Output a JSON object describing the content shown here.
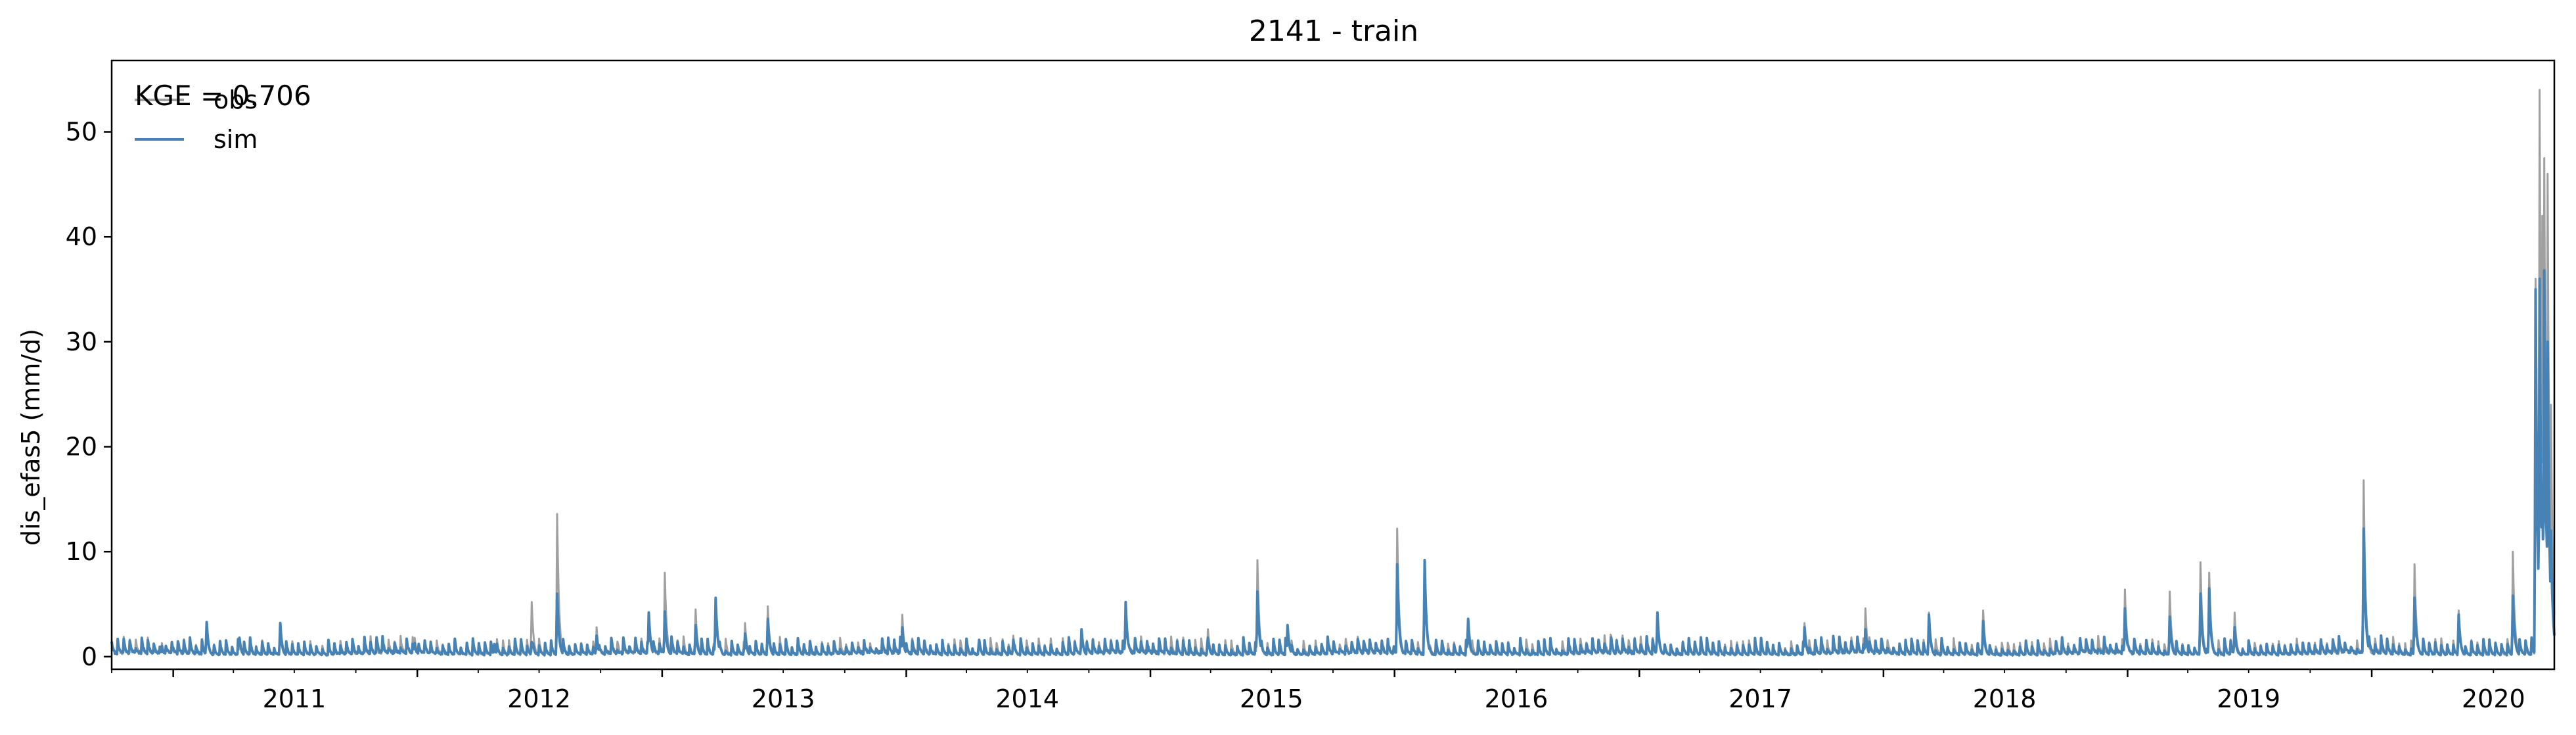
{
  "chart_data": {
    "type": "line",
    "title": "2141 - train",
    "xlabel": "",
    "ylabel": "dis_efas5 (mm/d)",
    "xlim": [
      "2010-10-01",
      "2020-09-30"
    ],
    "ylim": [
      -1.2,
      56.8
    ],
    "grid": false,
    "legend": {
      "placement": "top-left",
      "entries": [
        "obs",
        "sim"
      ]
    },
    "annotation": "KGE = 0.706",
    "y_ticks": [
      0,
      10,
      20,
      30,
      40,
      50
    ],
    "x_ticks": [
      "2011",
      "2012",
      "2013",
      "2014",
      "2015",
      "2016",
      "2017",
      "2018",
      "2019",
      "2020"
    ],
    "series": [
      {
        "name": "obs",
        "color": "#a0a0a0",
        "peaks": [
          [
            "2010-12-15",
            1.3
          ],
          [
            "2011-02-20",
            2.8
          ],
          [
            "2011-04-10",
            1.8
          ],
          [
            "2011-06-10",
            2.6
          ],
          [
            "2011-11-10",
            1.4
          ],
          [
            "2011-12-28",
            1.8
          ],
          [
            "2012-04-25",
            1.2
          ],
          [
            "2012-06-20",
            5.2
          ],
          [
            "2012-07-28",
            13.6
          ],
          [
            "2012-09-25",
            2.8
          ],
          [
            "2012-12-12",
            3.5
          ],
          [
            "2013-01-05",
            8.0
          ],
          [
            "2013-02-20",
            4.5
          ],
          [
            "2013-03-22",
            5.4
          ],
          [
            "2013-05-05",
            3.2
          ],
          [
            "2013-06-08",
            4.8
          ],
          [
            "2013-12-26",
            4.0
          ],
          [
            "2014-04-20",
            1.6
          ],
          [
            "2014-06-10",
            2.0
          ],
          [
            "2014-09-20",
            2.4
          ],
          [
            "2014-11-25",
            4.6
          ],
          [
            "2015-03-28",
            2.6
          ],
          [
            "2015-06-10",
            9.2
          ],
          [
            "2015-07-25",
            3.0
          ],
          [
            "2016-01-05",
            12.2
          ],
          [
            "2016-02-15",
            8.6
          ],
          [
            "2016-04-20",
            2.6
          ],
          [
            "2016-11-20",
            2.0
          ],
          [
            "2017-01-28",
            4.0
          ],
          [
            "2017-09-05",
            3.2
          ],
          [
            "2017-12-05",
            4.6
          ],
          [
            "2018-03-10",
            4.2
          ],
          [
            "2018-05-30",
            4.4
          ],
          [
            "2018-12-28",
            6.4
          ],
          [
            "2019-03-05",
            6.2
          ],
          [
            "2019-04-20",
            9.0
          ],
          [
            "2019-05-03",
            8.0
          ],
          [
            "2019-06-10",
            4.2
          ],
          [
            "2019-12-20",
            16.8
          ],
          [
            "2020-03-05",
            8.8
          ],
          [
            "2020-05-10",
            4.4
          ],
          [
            "2020-07-30",
            10.0
          ],
          [
            "2020-09-02",
            36.0
          ],
          [
            "2020-09-08",
            54.0
          ],
          [
            "2020-09-12",
            42.0
          ],
          [
            "2020-09-15",
            47.5
          ],
          [
            "2020-09-20",
            46.0
          ],
          [
            "2020-09-25",
            24.0
          ]
        ]
      },
      {
        "name": "sim",
        "color": "#4682b4",
        "peaks": [
          [
            "2010-12-15",
            1.0
          ],
          [
            "2011-02-20",
            3.3
          ],
          [
            "2011-04-10",
            1.8
          ],
          [
            "2011-06-10",
            3.2
          ],
          [
            "2011-11-10",
            1.7
          ],
          [
            "2011-12-28",
            1.3
          ],
          [
            "2012-04-25",
            1.2
          ],
          [
            "2012-06-20",
            1.4
          ],
          [
            "2012-07-28",
            6.0
          ],
          [
            "2012-09-25",
            2.0
          ],
          [
            "2012-12-12",
            4.2
          ],
          [
            "2013-01-05",
            4.3
          ],
          [
            "2013-02-20",
            3.0
          ],
          [
            "2013-03-22",
            5.6
          ],
          [
            "2013-05-05",
            2.2
          ],
          [
            "2013-06-08",
            3.6
          ],
          [
            "2013-12-26",
            2.8
          ],
          [
            "2014-04-20",
            1.6
          ],
          [
            "2014-06-10",
            1.6
          ],
          [
            "2014-09-20",
            2.6
          ],
          [
            "2014-11-25",
            5.2
          ],
          [
            "2015-03-28",
            1.8
          ],
          [
            "2015-06-10",
            6.2
          ],
          [
            "2015-07-25",
            3.0
          ],
          [
            "2016-01-05",
            8.8
          ],
          [
            "2016-02-15",
            9.2
          ],
          [
            "2016-04-20",
            3.6
          ],
          [
            "2016-11-20",
            1.8
          ],
          [
            "2017-01-28",
            4.2
          ],
          [
            "2017-09-05",
            2.8
          ],
          [
            "2017-12-05",
            2.6
          ],
          [
            "2018-03-10",
            4.0
          ],
          [
            "2018-05-30",
            3.4
          ],
          [
            "2018-12-28",
            4.6
          ],
          [
            "2019-03-05",
            3.8
          ],
          [
            "2019-04-20",
            6.0
          ],
          [
            "2019-05-03",
            6.5
          ],
          [
            "2019-06-10",
            2.8
          ],
          [
            "2019-12-20",
            12.2
          ],
          [
            "2020-03-05",
            5.6
          ],
          [
            "2020-05-10",
            4.0
          ],
          [
            "2020-07-30",
            5.8
          ],
          [
            "2020-09-02",
            35.0
          ],
          [
            "2020-09-08",
            36.0
          ],
          [
            "2020-09-12",
            16.0
          ],
          [
            "2020-09-15",
            36.8
          ],
          [
            "2020-09-20",
            30.0
          ],
          [
            "2020-09-25",
            12.0
          ]
        ]
      }
    ]
  }
}
